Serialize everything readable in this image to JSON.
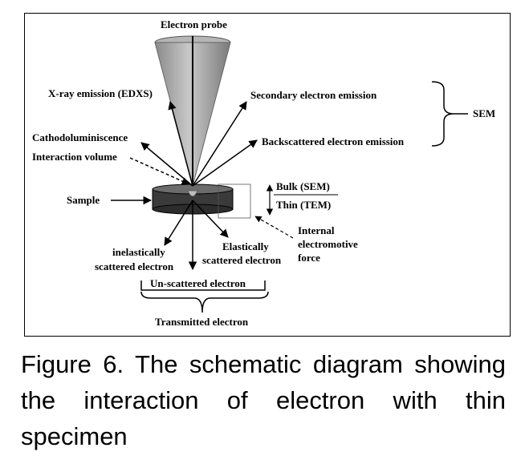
{
  "diagram": {
    "labels": {
      "electron_probe": "Electron probe",
      "xray": "X-ray emission (EDXS)",
      "secondary": "Secondary electron emission",
      "backscattered": "Backscattered  electron emission",
      "sem": "SEM",
      "cathodo": "Cathodoluminiscence",
      "interaction_volume": "Interaction volume",
      "sample": "Sample",
      "bulk": "Bulk (SEM)",
      "thin": "Thin (TEM)",
      "internal_force": [
        "Internal",
        "electromotive",
        "force"
      ],
      "inelastic": [
        "inelastically",
        "scattered electron"
      ],
      "elastic": [
        "Elastically",
        "scattered electron"
      ],
      "unscattered": "Un-scattered electron",
      "transmitted": "Transmitted electron"
    },
    "caption": "Figure 6. The schematic diagram showing the interaction of electron with thin specimen"
  }
}
